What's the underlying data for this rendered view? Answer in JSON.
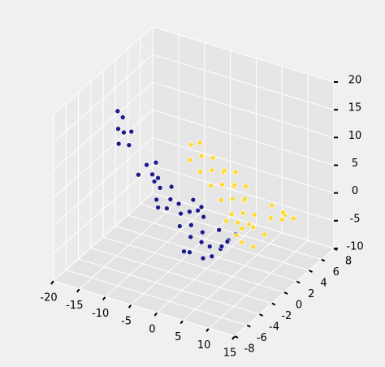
{
  "chart_data": {
    "type": "scatter3d",
    "xlim": [
      -20,
      15
    ],
    "xticks": [
      -20,
      -15,
      -10,
      -5,
      0,
      5,
      10,
      15
    ],
    "ylim": [
      -8,
      8
    ],
    "yticks": [
      -8,
      -6,
      -4,
      -2,
      0,
      2,
      4,
      6,
      8
    ],
    "zlim": [
      -10,
      20
    ],
    "zticks": [
      -10,
      -5,
      0,
      5,
      10,
      15,
      20
    ],
    "grid": true,
    "series": [
      {
        "color": "#1c1c8a",
        "x": [
          -17.2,
          -16.8,
          -16.5,
          -16,
          -15.5,
          -15.8,
          -15,
          -11.6,
          -11,
          -12,
          -10.5,
          -10,
          -9.5,
          -9,
          -8,
          -8.5,
          -7,
          -6,
          -6.5,
          -5,
          -4.5,
          -4,
          -3,
          -3.5,
          -2.5,
          -2,
          -1,
          -1.5,
          0,
          0.5,
          1,
          1.5,
          -5,
          -7,
          -3,
          0,
          3,
          4,
          4.5,
          3.5,
          -2,
          -4
        ],
        "y": [
          0,
          0.5,
          -0.5,
          0,
          0.8,
          -1,
          0,
          0,
          1,
          -1,
          0,
          0.5,
          -0.5,
          0,
          1,
          -1,
          0,
          0.5,
          -1,
          0,
          1,
          -1,
          0,
          1.5,
          -0.5,
          1,
          0,
          -1.5,
          0.5,
          -1,
          0,
          1,
          2,
          -2,
          2,
          2,
          1,
          0,
          1,
          -0.5,
          -2,
          2.5
        ],
        "z": [
          13.5,
          12,
          11,
          10,
          9.5,
          9,
          8,
          5.4,
          5,
          4.5,
          4,
          3,
          3.5,
          2,
          1.5,
          1,
          0.5,
          -0.5,
          0,
          -1.5,
          -2,
          -2.5,
          -3,
          -2,
          -4.5,
          -5,
          -5.5,
          -6,
          -6.5,
          -7,
          -7.5,
          -7,
          -1,
          1,
          -3.5,
          -5,
          -5,
          -4,
          -3.5,
          -4.5,
          -5.5,
          -2.5
        ]
      },
      {
        "color": "#ffd92f",
        "x": [
          -3,
          -2.5,
          -2,
          -1,
          0,
          0,
          1,
          2,
          2,
          3,
          4,
          4,
          5,
          6,
          6,
          7,
          8,
          8,
          9,
          10,
          11,
          12,
          11.5,
          10,
          9,
          8,
          7,
          6,
          5,
          3,
          1,
          2,
          4,
          9,
          10,
          7,
          5
        ],
        "y": [
          0,
          1,
          -1,
          0,
          1,
          -1,
          0,
          1,
          -1,
          0,
          1,
          -1,
          0,
          1,
          -1,
          0,
          1,
          -1,
          0,
          2,
          3,
          4,
          3,
          4,
          0,
          -1,
          1,
          0,
          2,
          2,
          2,
          3,
          3,
          3,
          1,
          -1,
          -1
        ],
        "z": [
          11.5,
          11,
          10,
          10,
          9,
          8.5,
          8,
          7,
          6.5,
          6,
          5,
          4.5,
          4,
          3,
          2.5,
          2,
          1,
          0.5,
          0,
          0,
          -1,
          -1.5,
          0,
          -1,
          -3.5,
          -2,
          -1,
          0,
          2,
          4,
          6,
          5,
          3,
          1,
          -2,
          -1,
          1
        ]
      }
    ]
  }
}
